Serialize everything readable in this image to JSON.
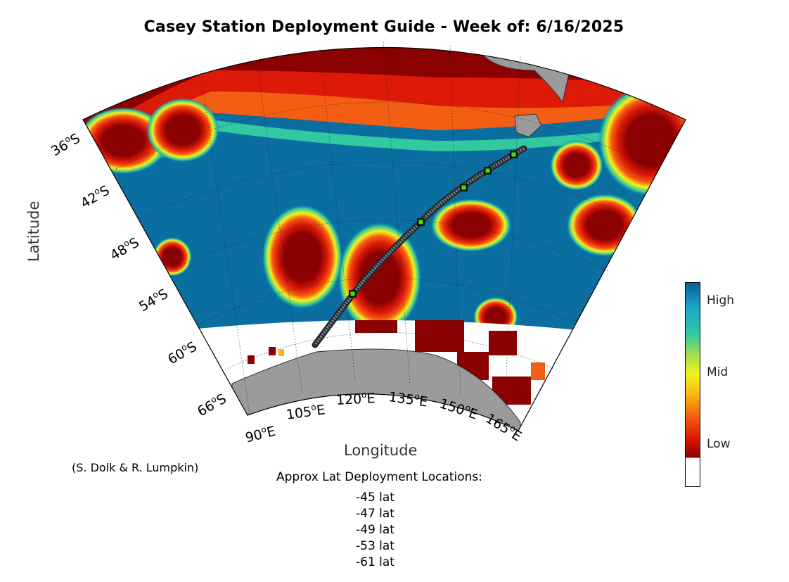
{
  "title": "Casey Station Deployment Guide - Week of: 6/16/2025",
  "axes": {
    "x_title": "Longitude",
    "y_title": "Latitude",
    "lon_ticks": [
      {
        "value": 90,
        "label": "90",
        "hemi": "E"
      },
      {
        "value": 105,
        "label": "105",
        "hemi": "E"
      },
      {
        "value": 120,
        "label": "120",
        "hemi": "E"
      },
      {
        "value": 135,
        "label": "135",
        "hemi": "E"
      },
      {
        "value": 150,
        "label": "150",
        "hemi": "E"
      },
      {
        "value": 165,
        "label": "165",
        "hemi": "E"
      }
    ],
    "lat_ticks": [
      {
        "value": -36,
        "label": "36",
        "hemi": "S"
      },
      {
        "value": -42,
        "label": "42",
        "hemi": "S"
      },
      {
        "value": -48,
        "label": "48",
        "hemi": "S"
      },
      {
        "value": -54,
        "label": "54",
        "hemi": "S"
      },
      {
        "value": -60,
        "label": "60",
        "hemi": "S"
      },
      {
        "value": -66,
        "label": "66",
        "hemi": "S"
      }
    ],
    "degree_symbol": "o"
  },
  "colorbar": {
    "labels": [
      "High",
      "Mid",
      "Low"
    ],
    "colors": [
      "#0a5f96",
      "#1aa6c8",
      "#32c8a0",
      "#a8e04a",
      "#f4f21a",
      "#f9b715",
      "#f45e12",
      "#dd1a08",
      "#8b0000"
    ]
  },
  "credit": "(S. Dolk & R. Lumpkin)",
  "deployment": {
    "heading": "Approx Lat Deployment Locations:",
    "locations": [
      "-45 lat",
      "-47 lat",
      "-49 lat",
      "-53 lat",
      "-61 lat"
    ]
  },
  "land_color": "#9b9b9b",
  "ocean_color": "#0a6ea0"
}
